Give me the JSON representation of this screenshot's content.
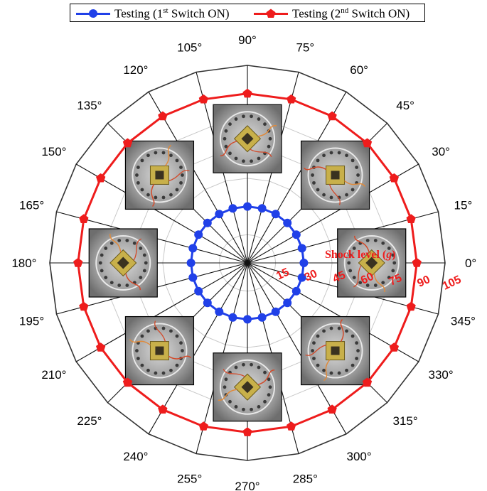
{
  "chart_data": {
    "type": "polar-line",
    "legend": {
      "position": "top",
      "entries": [
        {
          "prefix": "Testing (1",
          "sup": "st",
          "suffix": " Switch ON)",
          "color": "#2040e8",
          "marker": "circle"
        },
        {
          "prefix": "Testing (2",
          "sup": "nd",
          "suffix": " Switch ON)",
          "color": "#ee1c1c",
          "marker": "pentagon"
        }
      ]
    },
    "angle_labels": [
      "0°",
      "15°",
      "30°",
      "45°",
      "60°",
      "75°",
      "90°",
      "105°",
      "120°",
      "135°",
      "150°",
      "165°",
      "180°",
      "195°",
      "210°",
      "225°",
      "240°",
      "255°",
      "270°",
      "285°",
      "300°",
      "315°",
      "330°",
      "345°"
    ],
    "radial_axis": {
      "label_prefix": "Shock level (",
      "label_var": "g",
      "label_suffix": ")",
      "ticks": [
        "15",
        "30",
        "45",
        "60",
        "75",
        "90",
        "105"
      ],
      "range": [
        0,
        105
      ],
      "color": "#ee1c1c"
    },
    "grid": true,
    "series": [
      {
        "name": "Testing (1st Switch ON)",
        "color": "#2040e8",
        "theta": [
          0,
          15,
          30,
          45,
          60,
          75,
          90,
          105,
          120,
          135,
          150,
          165,
          180,
          195,
          210,
          225,
          240,
          255,
          270,
          285,
          300,
          315,
          330,
          345
        ],
        "r": [
          30,
          30,
          30,
          30,
          30,
          30,
          30,
          30,
          30,
          30,
          30,
          30,
          30,
          30,
          30,
          30,
          30,
          30,
          30,
          30,
          30,
          30,
          30,
          30
        ]
      },
      {
        "name": "Testing (2nd Switch ON)",
        "color": "#ee1c1c",
        "theta": [
          0,
          15,
          30,
          45,
          60,
          75,
          90,
          105,
          120,
          135,
          150,
          165,
          180,
          195,
          210,
          225,
          240,
          255,
          270,
          285,
          300,
          315,
          330,
          345
        ],
        "r": [
          90,
          90,
          90,
          90,
          90,
          90,
          90,
          90,
          90,
          90,
          90,
          90,
          90,
          90,
          90,
          90,
          90,
          90,
          90,
          90,
          90,
          90,
          90,
          90
        ]
      }
    ],
    "inset_photos": [
      {
        "name": "photo-0-deg",
        "angle": 0
      },
      {
        "name": "photo-45-deg",
        "angle": 45
      },
      {
        "name": "photo-90-deg",
        "angle": 90
      },
      {
        "name": "photo-135-deg",
        "angle": 135
      },
      {
        "name": "photo-180-deg",
        "angle": 180
      },
      {
        "name": "photo-225-deg",
        "angle": 225
      },
      {
        "name": "photo-270-deg",
        "angle": 270
      },
      {
        "name": "photo-315-deg",
        "angle": 315
      }
    ]
  }
}
